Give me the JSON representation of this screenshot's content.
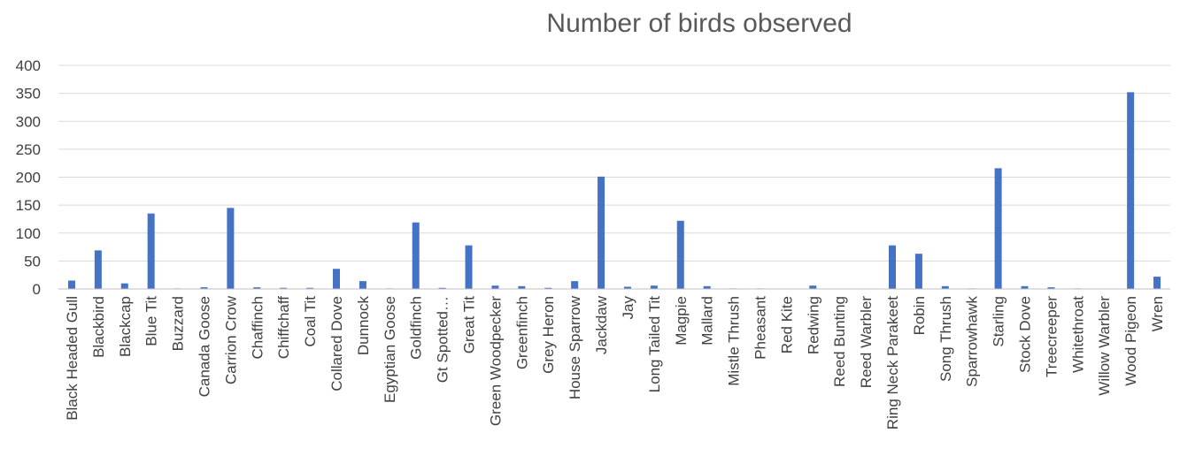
{
  "chart_data": {
    "type": "bar",
    "title": "Number of birds observed",
    "xlabel": "",
    "ylabel": "",
    "ylim": [
      0,
      400
    ],
    "yticks": [
      0,
      50,
      100,
      150,
      200,
      250,
      300,
      350,
      400
    ],
    "grid": true,
    "bar_color": "#4472c4",
    "categories": [
      "Black Headed Gull",
      "Blackbird",
      "Blackcap",
      "Blue Tit",
      "Buzzard",
      "Canada Goose",
      "Carrion Crow",
      "Chaffinch",
      "Chiffchaff",
      "Coal Tit",
      "Collared Dove",
      "Dunnock",
      "Egyptian Goose",
      "Goldfinch",
      "Gt Spotted…",
      "Great Tit",
      "Green Woodpecker",
      "Greenfinch",
      "Grey Heron",
      "House Sparrow",
      "Jackdaw",
      "Jay",
      "Long Tailed Tit",
      "Magpie",
      "Mallard",
      "Mistle Thrush",
      "Pheasant",
      "Red Kite",
      "Redwing",
      "Reed Bunting",
      "Reed Warbler",
      "Ring Neck Parakeet",
      "Robin",
      "Song Thrush",
      "Sparrowhawk",
      "Starling",
      "Stock Dove",
      "Treecreeper",
      "Whitethroat",
      "Willow Warbler",
      "Wood Pigeon",
      "Wren"
    ],
    "values": [
      15,
      69,
      10,
      135,
      1,
      3,
      145,
      3,
      2,
      2,
      36,
      14,
      1,
      119,
      2,
      78,
      6,
      5,
      2,
      14,
      201,
      4,
      6,
      122,
      5,
      1,
      1,
      0,
      6,
      0,
      0,
      78,
      63,
      5,
      1,
      216,
      5,
      3,
      1,
      0,
      352,
      22
    ]
  }
}
